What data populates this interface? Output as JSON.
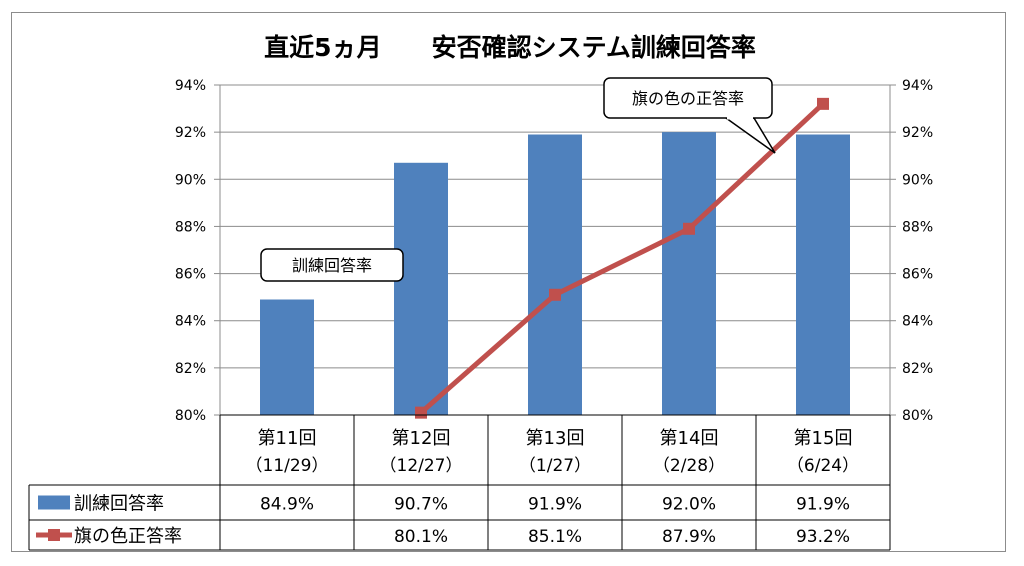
{
  "chart_data": {
    "type": "bar",
    "title": "直近5ヵ月　　安否確認システム訓練回答率",
    "categories": [
      {
        "line1": "第11回",
        "line2": "（11/29）"
      },
      {
        "line1": "第12回",
        "line2": "（12/27）"
      },
      {
        "line1": "第13回",
        "line2": "（1/27）"
      },
      {
        "line1": "第14回",
        "line2": "（2/28）"
      },
      {
        "line1": "第15回",
        "line2": "（6/24）"
      }
    ],
    "ylim": [
      80,
      94
    ],
    "y_ticks": [
      "80%",
      "82%",
      "84%",
      "86%",
      "88%",
      "90%",
      "92%",
      "94%"
    ],
    "y2_ticks": [
      "80%",
      "82%",
      "84%",
      "86%",
      "88%",
      "90%",
      "92%",
      "94%"
    ],
    "grid": true,
    "series": [
      {
        "name": "訓練回答率",
        "kind": "bar",
        "color": "#4f81bd",
        "values": [
          84.9,
          90.7,
          91.9,
          92.0,
          91.9
        ],
        "table_labels": [
          "84.9%",
          "90.7%",
          "91.9%",
          "92.0%",
          "91.9%"
        ]
      },
      {
        "name": "旗の色正答率",
        "kind": "line",
        "color": "#c0504d",
        "values": [
          null,
          80.1,
          85.1,
          87.9,
          93.2
        ],
        "table_labels": [
          "",
          "80.1%",
          "85.1%",
          "87.9%",
          "93.2%"
        ]
      }
    ],
    "annotations": [
      {
        "text": "訓練回答率",
        "target_series": 0
      },
      {
        "text": "旗の色の正答率",
        "target_series": 1
      }
    ],
    "legend_placement": "data-table"
  }
}
